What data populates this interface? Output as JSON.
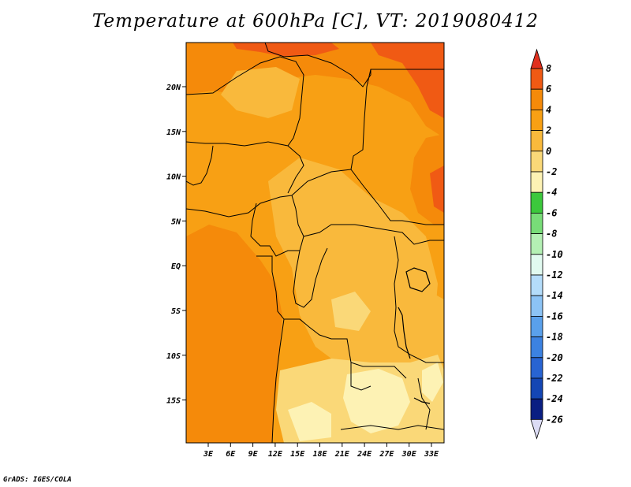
{
  "title": "Temperature at 600hPa [C], VT: 2019080412",
  "credit": "GrADS: IGES/COLA",
  "map": {
    "lon_labels": [
      "3E",
      "6E",
      "9E",
      "12E",
      "15E",
      "18E",
      "21E",
      "24E",
      "27E",
      "30E",
      "33E"
    ],
    "lat_labels": [
      "20N",
      "15N",
      "10N",
      "5N",
      "EQ",
      "5S",
      "10S",
      "15S"
    ]
  },
  "colorbar": {
    "labels": [
      "8",
      "6",
      "4",
      "2",
      "0",
      "-2",
      "-4",
      "-6",
      "-8",
      "-10",
      "-12",
      "-14",
      "-16",
      "-18",
      "-20",
      "-22",
      "-24",
      "-26"
    ],
    "colors": {
      "above_8": "#e0301e",
      "6_to_8": "#f05a14",
      "4_to_6": "#f58a0a",
      "2_to_4": "#f8a014",
      "0_to_2": "#f9b93c",
      "m2_to_0": "#fad878",
      "m4_to_m2": "#fdf2b4",
      "m6_to_m4": "#3cc83c",
      "m8_to_m6": "#78dc78",
      "m10_to_m8": "#b4f0b4",
      "m12_to_m10": "#e1faf0",
      "m14_to_m12": "#b4dcfa",
      "m16_to_m14": "#8cc3f5",
      "m18_to_m16": "#5aa0eb",
      "m20_to_m18": "#3c82e1",
      "m22_to_m20": "#2864d2",
      "m24_to_m22": "#1446b4",
      "m26_to_m24": "#0a1e82",
      "below_m26": "#dcdcf5"
    }
  }
}
